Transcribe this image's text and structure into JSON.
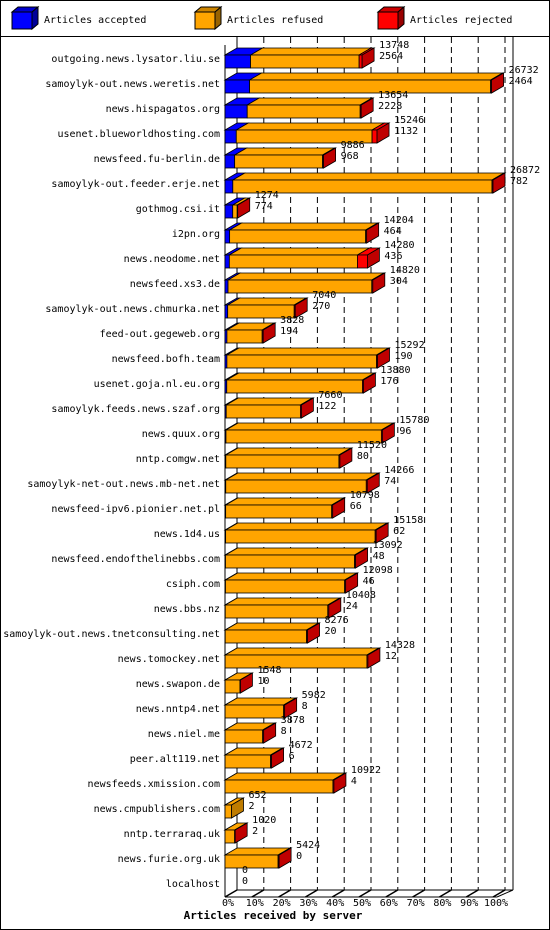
{
  "chart_data": {
    "type": "bar3d",
    "orientation": "horizontal",
    "stacked": true,
    "x_label": "Articles received by server",
    "categories": [
      "outgoing.news.lysator.liu.se",
      "samoylyk-out.news.weretis.net",
      "news.hispagatos.org",
      "usenet.blueworldhosting.com",
      "newsfeed.fu-berlin.de",
      "samoylyk-out.feeder.erje.net",
      "gothmog.csi.it",
      "i2pn.org",
      "news.neodome.net",
      "newsfeed.xs3.de",
      "samoylyk-out.news.chmurka.net",
      "feed-out.gegeweb.org",
      "newsfeed.bofh.team",
      "usenet.goja.nl.eu.org",
      "samoylyk.feeds.news.szaf.org",
      "news.quux.org",
      "nntp.comgw.net",
      "samoylyk-net-out.news.mb-net.net",
      "newsfeed-ipv6.pionier.net.pl",
      "news.1d4.us",
      "newsfeed.endofthelinebbs.com",
      "csiph.com",
      "news.bbs.nz",
      "samoylyk-out.news.tnetconsulting.net",
      "news.tomockey.net",
      "news.swapon.de",
      "news.nntp4.net",
      "news.niel.me",
      "peer.alt119.net",
      "newsfeeds.xmission.com",
      "news.cmpublishers.com",
      "nntp.terraraq.uk",
      "news.furie.org.uk",
      "localhost"
    ],
    "totals": [
      13748,
      26732,
      13654,
      15246,
      9886,
      26872,
      1274,
      14204,
      14280,
      14820,
      7040,
      3828,
      15292,
      13880,
      7660,
      15780,
      11520,
      14266,
      10798,
      15158,
      13092,
      12098,
      10408,
      8276,
      14328,
      1548,
      5982,
      3878,
      4672,
      10922,
      652,
      1020,
      5424,
      0
    ],
    "series": [
      {
        "name": "Articles accepted",
        "color": "#0000ff",
        "values": [
          2564,
          2464,
          2228,
          1132,
          968,
          782,
          774,
          464,
          436,
          304,
          270,
          194,
          190,
          176,
          122,
          96,
          80,
          74,
          66,
          62,
          48,
          46,
          24,
          20,
          12,
          10,
          8,
          8,
          6,
          4,
          2,
          2,
          0,
          0
        ]
      },
      {
        "name": "Articles refused",
        "color": "#ffa500",
        "values": [
          10884,
          24168,
          11326,
          13614,
          8818,
          25990,
          450,
          13640,
          12844,
          14416,
          6670,
          3534,
          15002,
          13604,
          7438,
          15584,
          11340,
          14092,
          10632,
          14996,
          12944,
          11952,
          10284,
          8156,
          14216,
          1488,
          5874,
          3770,
          4566,
          10818,
          650,
          968,
          5324,
          0
        ]
      },
      {
        "name": "Articles rejected",
        "color": "#ff0000",
        "values": [
          300,
          100,
          100,
          500,
          100,
          100,
          50,
          100,
          1000,
          100,
          100,
          100,
          100,
          100,
          100,
          100,
          100,
          100,
          100,
          100,
          100,
          100,
          100,
          100,
          100,
          50,
          100,
          100,
          100,
          100,
          0,
          50,
          100,
          0
        ]
      }
    ],
    "xlim": [
      0,
      26872
    ],
    "xticks": [
      {
        "value": 0,
        "label": "0%"
      },
      {
        "value": 2687.2,
        "label": "10%"
      },
      {
        "value": 5374.4,
        "label": "20%"
      },
      {
        "value": 8061.6,
        "label": "30%"
      },
      {
        "value": 10748.8,
        "label": "40%"
      },
      {
        "value": 13436,
        "label": "50%"
      },
      {
        "value": 16123.2,
        "label": "60%"
      },
      {
        "value": 18810.4,
        "label": "70%"
      },
      {
        "value": 21497.6,
        "label": "80%"
      },
      {
        "value": 24184.8,
        "label": "90%"
      },
      {
        "value": 26872,
        "label": "100%"
      }
    ],
    "grid": true
  }
}
